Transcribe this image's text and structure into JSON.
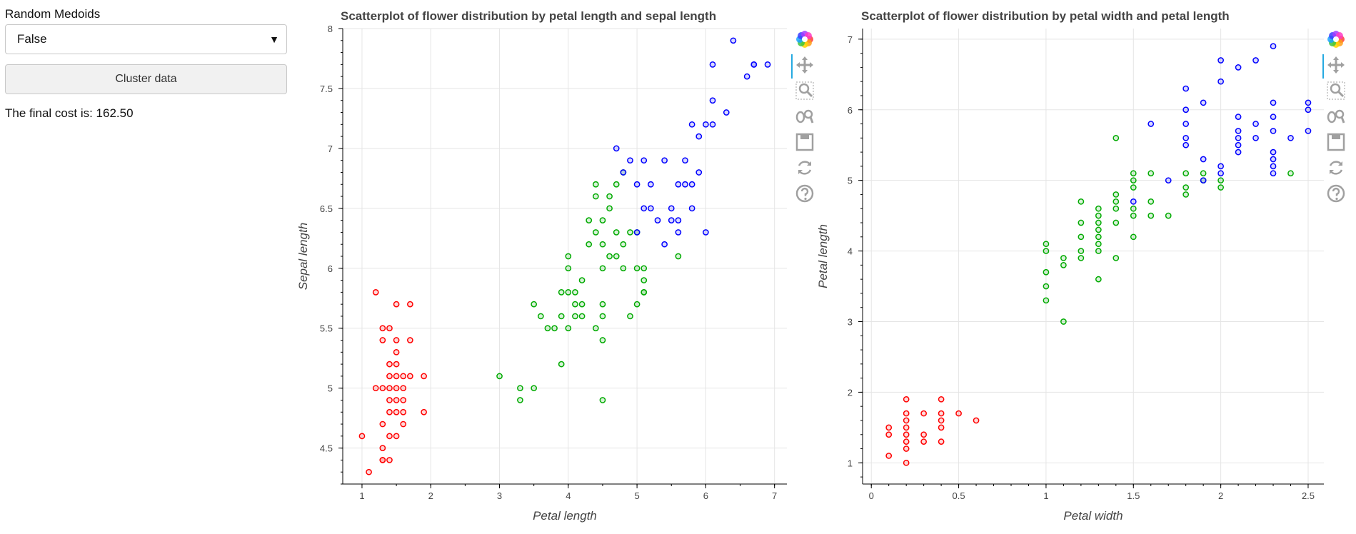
{
  "sidebar": {
    "select_label": "Random Medoids",
    "select_value": "False",
    "button_label": "Cluster data",
    "cost_text": "The final cost is: 162.50"
  },
  "toolbar_icons": [
    "bokeh-logo-icon",
    "pan-icon",
    "box-zoom-icon",
    "wheel-zoom-icon",
    "save-icon",
    "reset-icon",
    "help-icon"
  ],
  "colors": {
    "cluster_0": "#ff0000",
    "cluster_1": "#00aa00",
    "cluster_2": "#0000ff"
  },
  "chart_data": [
    {
      "type": "scatter",
      "title": "Scatterplot of flower distribution by petal length and sepal length",
      "xlabel": "Petal length",
      "ylabel": "Sepal length",
      "xlim": [
        0.72,
        7.18
      ],
      "ylim": [
        4.2,
        8.0
      ],
      "xticks": [
        1,
        2,
        3,
        4,
        5,
        6,
        7
      ],
      "xminor": 0.5,
      "yticks": [
        4.5,
        5,
        5.5,
        6,
        6.5,
        7,
        7.5,
        8
      ],
      "ytick_labels": [
        "4.5",
        "5",
        "5.5",
        "6",
        "6.5",
        "7",
        "7.5",
        "8"
      ],
      "yminor": 0.1,
      "grid": true,
      "series": [
        {
          "color": "#ff0000",
          "points": [
            [
              1.0,
              4.6
            ],
            [
              1.1,
              4.3
            ],
            [
              1.2,
              5.8
            ],
            [
              1.2,
              5.0
            ],
            [
              1.3,
              5.5
            ],
            [
              1.3,
              5.4
            ],
            [
              1.3,
              5.0
            ],
            [
              1.3,
              4.7
            ],
            [
              1.3,
              4.5
            ],
            [
              1.3,
              4.4
            ],
            [
              1.3,
              4.4
            ],
            [
              1.4,
              5.5
            ],
            [
              1.4,
              5.2
            ],
            [
              1.4,
              5.1
            ],
            [
              1.4,
              5.0
            ],
            [
              1.4,
              4.9
            ],
            [
              1.4,
              4.8
            ],
            [
              1.4,
              4.6
            ],
            [
              1.4,
              4.4
            ],
            [
              1.5,
              5.7
            ],
            [
              1.5,
              5.4
            ],
            [
              1.5,
              5.3
            ],
            [
              1.5,
              5.2
            ],
            [
              1.5,
              5.1
            ],
            [
              1.5,
              5.0
            ],
            [
              1.5,
              4.9
            ],
            [
              1.5,
              4.8
            ],
            [
              1.5,
              4.6
            ],
            [
              1.6,
              5.0
            ],
            [
              1.6,
              5.1
            ],
            [
              1.6,
              4.8
            ],
            [
              1.6,
              4.7
            ],
            [
              1.6,
              4.9
            ],
            [
              1.7,
              5.7
            ],
            [
              1.7,
              5.4
            ],
            [
              1.7,
              5.1
            ],
            [
              1.9,
              5.1
            ],
            [
              1.9,
              4.8
            ]
          ]
        },
        {
          "color": "#00aa00",
          "points": [
            [
              3.0,
              5.1
            ],
            [
              3.3,
              5.0
            ],
            [
              3.3,
              4.9
            ],
            [
              3.5,
              5.0
            ],
            [
              3.5,
              5.7
            ],
            [
              3.6,
              5.6
            ],
            [
              3.7,
              5.5
            ],
            [
              3.8,
              5.5
            ],
            [
              3.9,
              5.8
            ],
            [
              3.9,
              5.6
            ],
            [
              3.9,
              5.2
            ],
            [
              4.0,
              6.1
            ],
            [
              4.0,
              6.0
            ],
            [
              4.0,
              5.8
            ],
            [
              4.0,
              5.5
            ],
            [
              4.1,
              5.8
            ],
            [
              4.1,
              5.7
            ],
            [
              4.1,
              5.6
            ],
            [
              4.2,
              5.9
            ],
            [
              4.2,
              5.7
            ],
            [
              4.2,
              5.6
            ],
            [
              4.3,
              6.4
            ],
            [
              4.3,
              6.2
            ],
            [
              4.4,
              6.7
            ],
            [
              4.4,
              6.6
            ],
            [
              4.4,
              6.3
            ],
            [
              4.4,
              5.5
            ],
            [
              4.5,
              6.4
            ],
            [
              4.5,
              6.2
            ],
            [
              4.5,
              6.0
            ],
            [
              4.5,
              5.7
            ],
            [
              4.5,
              5.6
            ],
            [
              4.5,
              5.4
            ],
            [
              4.5,
              4.9
            ],
            [
              4.6,
              6.6
            ],
            [
              4.6,
              6.5
            ],
            [
              4.6,
              6.1
            ],
            [
              4.7,
              6.3
            ],
            [
              4.7,
              6.1
            ],
            [
              4.7,
              6.7
            ],
            [
              4.8,
              6.8
            ],
            [
              4.8,
              6.2
            ],
            [
              4.8,
              6.0
            ],
            [
              4.9,
              6.3
            ],
            [
              4.9,
              5.6
            ],
            [
              5.0,
              6.3
            ],
            [
              5.0,
              6.0
            ],
            [
              5.0,
              5.7
            ],
            [
              5.1,
              6.0
            ],
            [
              5.1,
              5.9
            ],
            [
              5.1,
              5.8
            ],
            [
              5.1,
              5.8
            ],
            [
              5.6,
              6.1
            ]
          ]
        },
        {
          "color": "#0000ff",
          "points": [
            [
              4.7,
              7.0
            ],
            [
              4.8,
              6.8
            ],
            [
              4.9,
              6.9
            ],
            [
              5.0,
              6.7
            ],
            [
              5.0,
              6.3
            ],
            [
              5.1,
              6.9
            ],
            [
              5.1,
              6.5
            ],
            [
              5.2,
              6.7
            ],
            [
              5.2,
              6.5
            ],
            [
              5.3,
              6.4
            ],
            [
              5.4,
              6.9
            ],
            [
              5.4,
              6.2
            ],
            [
              5.5,
              6.5
            ],
            [
              5.5,
              6.4
            ],
            [
              5.6,
              6.7
            ],
            [
              5.6,
              6.4
            ],
            [
              5.6,
              6.3
            ],
            [
              5.7,
              6.9
            ],
            [
              5.7,
              6.7
            ],
            [
              5.8,
              6.7
            ],
            [
              5.8,
              6.5
            ],
            [
              5.9,
              6.8
            ],
            [
              5.9,
              7.1
            ],
            [
              5.8,
              7.2
            ],
            [
              6.0,
              7.2
            ],
            [
              6.0,
              6.3
            ],
            [
              6.1,
              7.7
            ],
            [
              6.1,
              7.4
            ],
            [
              6.1,
              7.2
            ],
            [
              6.3,
              7.3
            ],
            [
              6.4,
              7.9
            ],
            [
              6.6,
              7.6
            ],
            [
              6.7,
              7.7
            ],
            [
              6.7,
              7.7
            ],
            [
              6.9,
              7.7
            ]
          ]
        }
      ]
    },
    {
      "type": "scatter",
      "title": "Scatterplot of flower distribution by petal width and petal length",
      "xlabel": "Petal width",
      "ylabel": "Petal length",
      "xlim": [
        -0.05,
        2.59
      ],
      "ylim": [
        0.7,
        7.15
      ],
      "xticks": [
        0,
        0.5,
        1,
        1.5,
        2,
        2.5
      ],
      "xminor": 0.1,
      "yticks": [
        1,
        2,
        3,
        4,
        5,
        6,
        7
      ],
      "ytick_labels": [
        "1",
        "2",
        "3",
        "4",
        "5",
        "6",
        "7"
      ],
      "yminor": 0.2,
      "grid": true,
      "series": [
        {
          "color": "#ff0000",
          "points": [
            [
              0.1,
              1.5
            ],
            [
              0.1,
              1.4
            ],
            [
              0.1,
              1.1
            ],
            [
              0.2,
              1.9
            ],
            [
              0.2,
              1.7
            ],
            [
              0.2,
              1.6
            ],
            [
              0.2,
              1.5
            ],
            [
              0.2,
              1.4
            ],
            [
              0.2,
              1.3
            ],
            [
              0.2,
              1.2
            ],
            [
              0.2,
              1.0
            ],
            [
              0.3,
              1.7
            ],
            [
              0.3,
              1.4
            ],
            [
              0.3,
              1.3
            ],
            [
              0.4,
              1.9
            ],
            [
              0.4,
              1.7
            ],
            [
              0.4,
              1.6
            ],
            [
              0.4,
              1.5
            ],
            [
              0.4,
              1.3
            ],
            [
              0.5,
              1.7
            ],
            [
              0.6,
              1.6
            ]
          ]
        },
        {
          "color": "#00aa00",
          "points": [
            [
              1.0,
              4.1
            ],
            [
              1.0,
              4.0
            ],
            [
              1.0,
              3.7
            ],
            [
              1.0,
              3.5
            ],
            [
              1.0,
              3.3
            ],
            [
              1.1,
              3.9
            ],
            [
              1.1,
              3.8
            ],
            [
              1.1,
              3.0
            ],
            [
              1.2,
              4.7
            ],
            [
              1.2,
              4.4
            ],
            [
              1.2,
              4.2
            ],
            [
              1.2,
              4.0
            ],
            [
              1.2,
              3.9
            ],
            [
              1.3,
              4.6
            ],
            [
              1.3,
              4.5
            ],
            [
              1.3,
              4.4
            ],
            [
              1.3,
              4.3
            ],
            [
              1.3,
              4.2
            ],
            [
              1.3,
              4.1
            ],
            [
              1.3,
              4.0
            ],
            [
              1.3,
              3.6
            ],
            [
              1.4,
              5.6
            ],
            [
              1.4,
              4.8
            ],
            [
              1.4,
              4.7
            ],
            [
              1.4,
              4.6
            ],
            [
              1.4,
              4.4
            ],
            [
              1.4,
              3.9
            ],
            [
              1.5,
              5.1
            ],
            [
              1.5,
              5.0
            ],
            [
              1.5,
              4.9
            ],
            [
              1.5,
              4.6
            ],
            [
              1.5,
              4.5
            ],
            [
              1.5,
              4.2
            ],
            [
              1.6,
              5.1
            ],
            [
              1.6,
              4.7
            ],
            [
              1.6,
              4.5
            ],
            [
              1.7,
              4.5
            ],
            [
              1.8,
              5.1
            ],
            [
              1.8,
              4.9
            ],
            [
              1.8,
              4.8
            ],
            [
              1.9,
              5.1
            ],
            [
              1.9,
              5.0
            ],
            [
              2.0,
              5.0
            ],
            [
              2.0,
              4.9
            ],
            [
              2.4,
              5.1
            ]
          ]
        },
        {
          "color": "#0000ff",
          "points": [
            [
              1.5,
              4.7
            ],
            [
              1.6,
              5.8
            ],
            [
              1.7,
              5.0
            ],
            [
              1.8,
              6.3
            ],
            [
              1.8,
              6.0
            ],
            [
              1.8,
              5.8
            ],
            [
              1.8,
              5.6
            ],
            [
              1.8,
              5.5
            ],
            [
              1.9,
              6.1
            ],
            [
              1.9,
              5.3
            ],
            [
              1.9,
              5.0
            ],
            [
              2.0,
              6.7
            ],
            [
              2.0,
              6.4
            ],
            [
              2.0,
              5.2
            ],
            [
              2.0,
              5.1
            ],
            [
              2.1,
              6.6
            ],
            [
              2.1,
              5.9
            ],
            [
              2.1,
              5.7
            ],
            [
              2.1,
              5.6
            ],
            [
              2.1,
              5.5
            ],
            [
              2.1,
              5.4
            ],
            [
              2.2,
              6.7
            ],
            [
              2.2,
              5.8
            ],
            [
              2.2,
              5.6
            ],
            [
              2.3,
              6.9
            ],
            [
              2.3,
              6.1
            ],
            [
              2.3,
              5.9
            ],
            [
              2.3,
              5.7
            ],
            [
              2.3,
              5.4
            ],
            [
              2.3,
              5.3
            ],
            [
              2.3,
              5.2
            ],
            [
              2.3,
              5.1
            ],
            [
              2.4,
              5.6
            ],
            [
              2.5,
              6.1
            ],
            [
              2.5,
              6.0
            ],
            [
              2.5,
              5.7
            ]
          ]
        }
      ]
    }
  ]
}
